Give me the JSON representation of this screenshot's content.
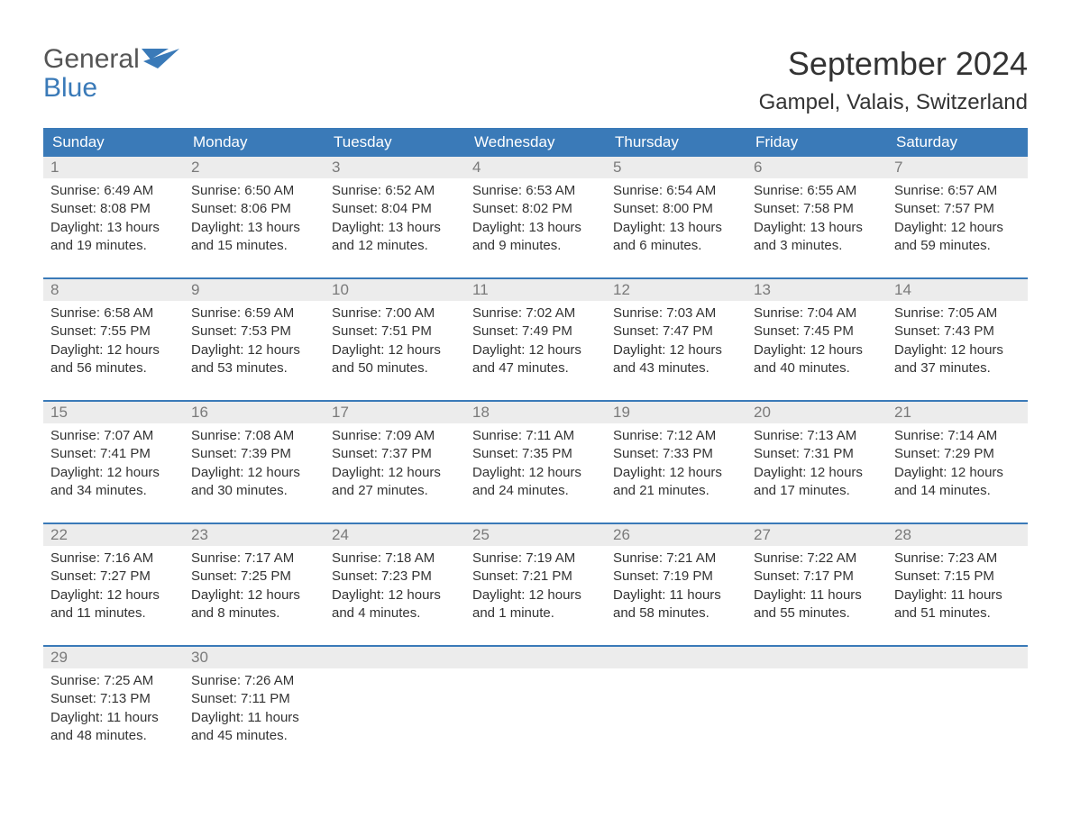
{
  "brand": {
    "word1": "General",
    "word2": "Blue"
  },
  "title": "September 2024",
  "location": "Gampel, Valais, Switzerland",
  "colors": {
    "header_bg": "#3a7ab8",
    "header_text": "#ffffff",
    "daynum_bg": "#ececec",
    "daynum_text": "#7a7a7a",
    "body_text": "#333333",
    "week_border": "#3a7ab8",
    "page_bg": "#ffffff",
    "logo_gray": "#555555",
    "logo_blue": "#3a7ab8"
  },
  "typography": {
    "title_fontsize": 36,
    "location_fontsize": 24,
    "dow_fontsize": 17,
    "daynum_fontsize": 17,
    "body_fontsize": 15
  },
  "days_of_week": [
    "Sunday",
    "Monday",
    "Tuesday",
    "Wednesday",
    "Thursday",
    "Friday",
    "Saturday"
  ],
  "weeks": [
    [
      {
        "num": "1",
        "sunrise": "Sunrise: 6:49 AM",
        "sunset": "Sunset: 8:08 PM",
        "daylight1": "Daylight: 13 hours",
        "daylight2": "and 19 minutes."
      },
      {
        "num": "2",
        "sunrise": "Sunrise: 6:50 AM",
        "sunset": "Sunset: 8:06 PM",
        "daylight1": "Daylight: 13 hours",
        "daylight2": "and 15 minutes."
      },
      {
        "num": "3",
        "sunrise": "Sunrise: 6:52 AM",
        "sunset": "Sunset: 8:04 PM",
        "daylight1": "Daylight: 13 hours",
        "daylight2": "and 12 minutes."
      },
      {
        "num": "4",
        "sunrise": "Sunrise: 6:53 AM",
        "sunset": "Sunset: 8:02 PM",
        "daylight1": "Daylight: 13 hours",
        "daylight2": "and 9 minutes."
      },
      {
        "num": "5",
        "sunrise": "Sunrise: 6:54 AM",
        "sunset": "Sunset: 8:00 PM",
        "daylight1": "Daylight: 13 hours",
        "daylight2": "and 6 minutes."
      },
      {
        "num": "6",
        "sunrise": "Sunrise: 6:55 AM",
        "sunset": "Sunset: 7:58 PM",
        "daylight1": "Daylight: 13 hours",
        "daylight2": "and 3 minutes."
      },
      {
        "num": "7",
        "sunrise": "Sunrise: 6:57 AM",
        "sunset": "Sunset: 7:57 PM",
        "daylight1": "Daylight: 12 hours",
        "daylight2": "and 59 minutes."
      }
    ],
    [
      {
        "num": "8",
        "sunrise": "Sunrise: 6:58 AM",
        "sunset": "Sunset: 7:55 PM",
        "daylight1": "Daylight: 12 hours",
        "daylight2": "and 56 minutes."
      },
      {
        "num": "9",
        "sunrise": "Sunrise: 6:59 AM",
        "sunset": "Sunset: 7:53 PM",
        "daylight1": "Daylight: 12 hours",
        "daylight2": "and 53 minutes."
      },
      {
        "num": "10",
        "sunrise": "Sunrise: 7:00 AM",
        "sunset": "Sunset: 7:51 PM",
        "daylight1": "Daylight: 12 hours",
        "daylight2": "and 50 minutes."
      },
      {
        "num": "11",
        "sunrise": "Sunrise: 7:02 AM",
        "sunset": "Sunset: 7:49 PM",
        "daylight1": "Daylight: 12 hours",
        "daylight2": "and 47 minutes."
      },
      {
        "num": "12",
        "sunrise": "Sunrise: 7:03 AM",
        "sunset": "Sunset: 7:47 PM",
        "daylight1": "Daylight: 12 hours",
        "daylight2": "and 43 minutes."
      },
      {
        "num": "13",
        "sunrise": "Sunrise: 7:04 AM",
        "sunset": "Sunset: 7:45 PM",
        "daylight1": "Daylight: 12 hours",
        "daylight2": "and 40 minutes."
      },
      {
        "num": "14",
        "sunrise": "Sunrise: 7:05 AM",
        "sunset": "Sunset: 7:43 PM",
        "daylight1": "Daylight: 12 hours",
        "daylight2": "and 37 minutes."
      }
    ],
    [
      {
        "num": "15",
        "sunrise": "Sunrise: 7:07 AM",
        "sunset": "Sunset: 7:41 PM",
        "daylight1": "Daylight: 12 hours",
        "daylight2": "and 34 minutes."
      },
      {
        "num": "16",
        "sunrise": "Sunrise: 7:08 AM",
        "sunset": "Sunset: 7:39 PM",
        "daylight1": "Daylight: 12 hours",
        "daylight2": "and 30 minutes."
      },
      {
        "num": "17",
        "sunrise": "Sunrise: 7:09 AM",
        "sunset": "Sunset: 7:37 PM",
        "daylight1": "Daylight: 12 hours",
        "daylight2": "and 27 minutes."
      },
      {
        "num": "18",
        "sunrise": "Sunrise: 7:11 AM",
        "sunset": "Sunset: 7:35 PM",
        "daylight1": "Daylight: 12 hours",
        "daylight2": "and 24 minutes."
      },
      {
        "num": "19",
        "sunrise": "Sunrise: 7:12 AM",
        "sunset": "Sunset: 7:33 PM",
        "daylight1": "Daylight: 12 hours",
        "daylight2": "and 21 minutes."
      },
      {
        "num": "20",
        "sunrise": "Sunrise: 7:13 AM",
        "sunset": "Sunset: 7:31 PM",
        "daylight1": "Daylight: 12 hours",
        "daylight2": "and 17 minutes."
      },
      {
        "num": "21",
        "sunrise": "Sunrise: 7:14 AM",
        "sunset": "Sunset: 7:29 PM",
        "daylight1": "Daylight: 12 hours",
        "daylight2": "and 14 minutes."
      }
    ],
    [
      {
        "num": "22",
        "sunrise": "Sunrise: 7:16 AM",
        "sunset": "Sunset: 7:27 PM",
        "daylight1": "Daylight: 12 hours",
        "daylight2": "and 11 minutes."
      },
      {
        "num": "23",
        "sunrise": "Sunrise: 7:17 AM",
        "sunset": "Sunset: 7:25 PM",
        "daylight1": "Daylight: 12 hours",
        "daylight2": "and 8 minutes."
      },
      {
        "num": "24",
        "sunrise": "Sunrise: 7:18 AM",
        "sunset": "Sunset: 7:23 PM",
        "daylight1": "Daylight: 12 hours",
        "daylight2": "and 4 minutes."
      },
      {
        "num": "25",
        "sunrise": "Sunrise: 7:19 AM",
        "sunset": "Sunset: 7:21 PM",
        "daylight1": "Daylight: 12 hours",
        "daylight2": "and 1 minute."
      },
      {
        "num": "26",
        "sunrise": "Sunrise: 7:21 AM",
        "sunset": "Sunset: 7:19 PM",
        "daylight1": "Daylight: 11 hours",
        "daylight2": "and 58 minutes."
      },
      {
        "num": "27",
        "sunrise": "Sunrise: 7:22 AM",
        "sunset": "Sunset: 7:17 PM",
        "daylight1": "Daylight: 11 hours",
        "daylight2": "and 55 minutes."
      },
      {
        "num": "28",
        "sunrise": "Sunrise: 7:23 AM",
        "sunset": "Sunset: 7:15 PM",
        "daylight1": "Daylight: 11 hours",
        "daylight2": "and 51 minutes."
      }
    ],
    [
      {
        "num": "29",
        "sunrise": "Sunrise: 7:25 AM",
        "sunset": "Sunset: 7:13 PM",
        "daylight1": "Daylight: 11 hours",
        "daylight2": "and 48 minutes."
      },
      {
        "num": "30",
        "sunrise": "Sunrise: 7:26 AM",
        "sunset": "Sunset: 7:11 PM",
        "daylight1": "Daylight: 11 hours",
        "daylight2": "and 45 minutes."
      },
      {
        "num": "",
        "sunrise": "",
        "sunset": "",
        "daylight1": "",
        "daylight2": ""
      },
      {
        "num": "",
        "sunrise": "",
        "sunset": "",
        "daylight1": "",
        "daylight2": ""
      },
      {
        "num": "",
        "sunrise": "",
        "sunset": "",
        "daylight1": "",
        "daylight2": ""
      },
      {
        "num": "",
        "sunrise": "",
        "sunset": "",
        "daylight1": "",
        "daylight2": ""
      },
      {
        "num": "",
        "sunrise": "",
        "sunset": "",
        "daylight1": "",
        "daylight2": ""
      }
    ]
  ]
}
